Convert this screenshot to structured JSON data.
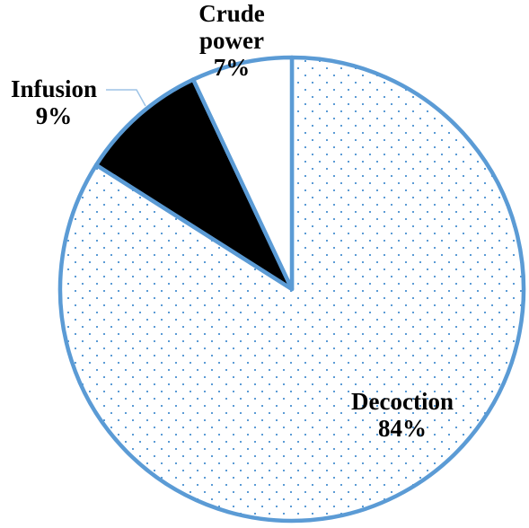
{
  "chart_data": {
    "type": "pie",
    "categories": [
      "Decoction",
      "Infusion",
      "Crude power"
    ],
    "values": [
      84,
      9,
      7
    ],
    "value_labels": [
      "84%",
      "9%",
      "7%"
    ],
    "colors": [
      "#ffffff",
      "#000000",
      "#ffffff"
    ],
    "patterns": [
      "dots",
      "solid",
      "solid"
    ],
    "edge_color": "#5b9bd5"
  }
}
